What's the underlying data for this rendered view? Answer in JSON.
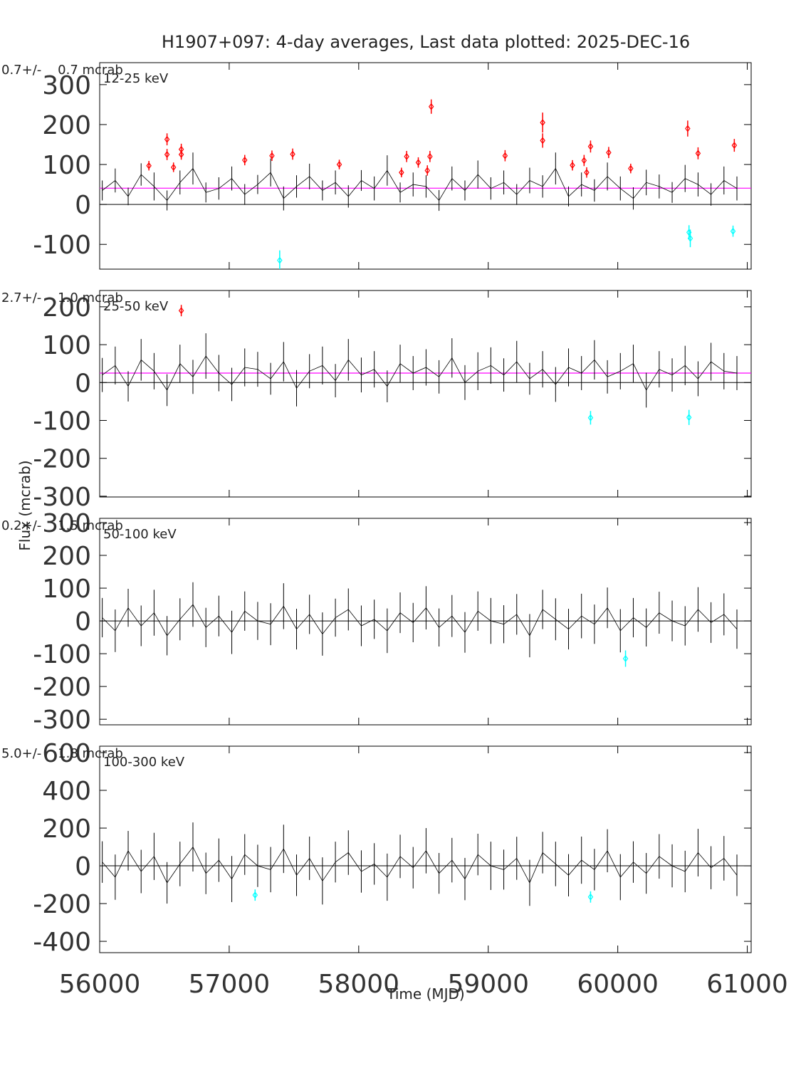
{
  "title": "H1907+097:  4-day averages,  Last data plotted: 2025-DEC-16",
  "y_label": "Flux (mcrab)",
  "x_label": "Time (MJD)",
  "chart_data": [
    {
      "type": "errorbar",
      "stat_label": "0.7+/-    0.7 mcrab",
      "band_label": "12-25 keV",
      "xlim": [
        56000,
        61030
      ],
      "ylim": [
        -162,
        355
      ],
      "xticks": [
        56000,
        57000,
        58000,
        59000,
        60000,
        61000
      ],
      "yticks": [
        -100,
        0,
        100,
        200,
        300
      ],
      "mean_line": 40.7,
      "mean_color": "#ff00ff",
      "series": [
        {
          "color": "#000000",
          "x": [
            56020,
            56120,
            56220,
            56320,
            56420,
            56520,
            56620,
            56720,
            56820,
            56920,
            57020,
            57120,
            57220,
            57320,
            57420,
            57520,
            57620,
            57720,
            57820,
            57920,
            58020,
            58120,
            58220,
            58320,
            58420,
            58520,
            58620,
            58720,
            58820,
            58920,
            59020,
            59120,
            59220,
            59320,
            59420,
            59520,
            59620,
            59720,
            59820,
            59920,
            60020,
            60120,
            60220,
            60320,
            60420,
            60520,
            60620,
            60720,
            60820,
            60920
          ],
          "values": [
            35,
            60,
            20,
            75,
            45,
            10,
            55,
            90,
            30,
            40,
            65,
            25,
            50,
            80,
            15,
            45,
            70,
            35,
            55,
            20,
            60,
            40,
            85,
            30,
            50,
            45,
            10,
            65,
            35,
            75,
            40,
            55,
            25,
            60,
            45,
            90,
            20,
            50,
            35,
            70,
            40,
            15,
            55,
            45,
            30,
            65,
            50,
            25,
            60,
            40
          ],
          "errors": [
            25,
            30,
            22,
            28,
            35,
            25,
            30,
            40,
            25,
            28,
            30,
            26,
            24,
            35,
            30,
            28,
            32,
            25,
            30,
            28,
            26,
            30,
            38,
            25,
            30,
            28,
            26,
            30,
            25,
            35,
            28,
            30,
            26,
            32,
            28,
            40,
            25,
            30,
            28,
            35,
            30,
            28,
            32,
            30,
            26,
            34,
            30,
            28,
            35,
            30
          ]
        },
        {
          "color": "#ff0000",
          "x": [
            56380,
            56520,
            56520,
            56570,
            56630,
            56630,
            57120,
            57330,
            57490,
            57850,
            58330,
            58370,
            58460,
            58530,
            58550,
            58560,
            59130,
            59420,
            59420,
            59650,
            59740,
            59760,
            59790,
            59930,
            60100,
            60540,
            60620,
            60900
          ],
          "values": [
            97,
            163,
            125,
            93,
            138,
            125,
            111,
            122,
            126,
            100,
            80,
            120,
            105,
            85,
            120,
            245,
            122,
            205,
            160,
            98,
            110,
            80,
            145,
            130,
            90,
            190,
            128,
            148
          ],
          "errors": [
            12,
            15,
            14,
            12,
            14,
            13,
            13,
            13,
            14,
            12,
            12,
            14,
            13,
            13,
            14,
            18,
            14,
            25,
            18,
            13,
            14,
            13,
            15,
            14,
            12,
            20,
            15,
            16
          ]
        },
        {
          "color": "#00ffff",
          "x": [
            57390,
            60550,
            60560,
            60890
          ],
          "values": [
            -140,
            -70,
            -85,
            -67
          ],
          "errors": [
            25,
            18,
            22,
            14
          ]
        }
      ]
    },
    {
      "type": "errorbar",
      "stat_label": "2.7+/-    1.0 mcrab",
      "band_label": "25-50 keV",
      "xlim": [
        56000,
        61030
      ],
      "ylim": [
        -302,
        243
      ],
      "xticks": [
        56000,
        57000,
        58000,
        59000,
        60000,
        61000
      ],
      "yticks": [
        -300,
        -200,
        -100,
        0,
        100,
        200
      ],
      "mean_line": 25,
      "mean_color": "#ff00ff",
      "series": [
        {
          "color": "#000000",
          "x": [
            56020,
            56120,
            56220,
            56320,
            56420,
            56520,
            56620,
            56720,
            56820,
            56920,
            57020,
            57120,
            57220,
            57320,
            57420,
            57520,
            57620,
            57720,
            57820,
            57920,
            58020,
            58120,
            58220,
            58320,
            58420,
            58520,
            58620,
            58720,
            58820,
            58920,
            59020,
            59120,
            59220,
            59320,
            59420,
            59520,
            59620,
            59720,
            59820,
            59920,
            60020,
            60120,
            60220,
            60320,
            60420,
            60520,
            60620,
            60720,
            60820,
            60920
          ],
          "values": [
            20,
            45,
            -10,
            60,
            30,
            -20,
            50,
            15,
            70,
            25,
            -5,
            40,
            35,
            10,
            55,
            -15,
            30,
            45,
            5,
            60,
            20,
            35,
            -10,
            50,
            25,
            40,
            15,
            65,
            0,
            30,
            45,
            20,
            55,
            10,
            35,
            -5,
            40,
            25,
            60,
            15,
            30,
            50,
            -20,
            35,
            20,
            45,
            10,
            55,
            30,
            25
          ],
          "errors": [
            45,
            50,
            40,
            55,
            48,
            42,
            50,
            45,
            60,
            48,
            44,
            50,
            46,
            42,
            52,
            48,
            45,
            50,
            44,
            55,
            46,
            48,
            42,
            50,
            45,
            48,
            44,
            52,
            46,
            50,
            48,
            44,
            55,
            42,
            48,
            46,
            50,
            45,
            52,
            44,
            48,
            50,
            46,
            48,
            44,
            52,
            46,
            50,
            48,
            45
          ]
        },
        {
          "color": "#ff0000",
          "x": [
            56630
          ],
          "values": [
            190
          ],
          "errors": [
            15
          ]
        },
        {
          "color": "#00ffff",
          "x": [
            59790,
            60550
          ],
          "values": [
            -93,
            -92
          ],
          "errors": [
            18,
            20
          ]
        }
      ]
    },
    {
      "type": "errorbar",
      "stat_label": "0.2+/-    1.5 mcrab",
      "band_label": "50-100 keV",
      "xlim": [
        56000,
        61030
      ],
      "ylim": [
        -317,
        313
      ],
      "xticks": [
        56000,
        57000,
        58000,
        59000,
        60000,
        61000
      ],
      "yticks": [
        -300,
        -200,
        -100,
        0,
        100,
        200,
        300
      ],
      "series": [
        {
          "color": "#000000",
          "x": [
            56020,
            56120,
            56220,
            56320,
            56420,
            56520,
            56620,
            56720,
            56820,
            56920,
            57020,
            57120,
            57220,
            57320,
            57420,
            57520,
            57620,
            57720,
            57820,
            57920,
            58020,
            58120,
            58220,
            58320,
            58420,
            58520,
            58620,
            58720,
            58820,
            58920,
            59020,
            59120,
            59220,
            59320,
            59420,
            59520,
            59620,
            59720,
            59820,
            59920,
            60020,
            60120,
            60220,
            60320,
            60420,
            60520,
            60620,
            60720,
            60820,
            60920
          ],
          "values": [
            10,
            -30,
            40,
            -15,
            25,
            -45,
            5,
            50,
            -20,
            15,
            -35,
            30,
            0,
            -10,
            45,
            -25,
            20,
            -40,
            10,
            35,
            -15,
            5,
            -30,
            25,
            -5,
            40,
            -20,
            15,
            -35,
            30,
            0,
            -10,
            20,
            -45,
            35,
            5,
            -25,
            15,
            -10,
            40,
            -30,
            10,
            -20,
            25,
            0,
            -15,
            35,
            -5,
            20,
            -25
          ],
          "errors": [
            60,
            65,
            58,
            62,
            70,
            60,
            64,
            68,
            60,
            62,
            66,
            60,
            58,
            64,
            70,
            62,
            60,
            66,
            58,
            64,
            62,
            60,
            68,
            62,
            60,
            66,
            58,
            64,
            62,
            60,
            70,
            58,
            62,
            66,
            60,
            64,
            62,
            68,
            60,
            62,
            66,
            60,
            58,
            64,
            62,
            60,
            68,
            62,
            64,
            60
          ]
        },
        {
          "color": "#00ffff",
          "x": [
            60060
          ],
          "values": [
            -115
          ],
          "errors": [
            25
          ]
        }
      ]
    },
    {
      "type": "errorbar",
      "stat_label": "5.0+/-    1.8 mcrab",
      "band_label": "100-300 keV",
      "xlim": [
        56000,
        61030
      ],
      "ylim": [
        -460,
        634
      ],
      "xticks": [
        56000,
        57000,
        58000,
        59000,
        60000,
        61000
      ],
      "yticks": [
        -400,
        -200,
        0,
        200,
        400,
        600
      ],
      "series": [
        {
          "color": "#000000",
          "x": [
            56020,
            56120,
            56220,
            56320,
            56420,
            56520,
            56620,
            56720,
            56820,
            56920,
            57020,
            57120,
            57220,
            57320,
            57420,
            57520,
            57620,
            57720,
            57820,
            57920,
            58020,
            58120,
            58220,
            58320,
            58420,
            58520,
            58620,
            58720,
            58820,
            58920,
            59020,
            59120,
            59220,
            59320,
            59420,
            59520,
            59620,
            59720,
            59820,
            59920,
            60020,
            60120,
            60220,
            60320,
            60420,
            60520,
            60620,
            60720,
            60820,
            60920
          ],
          "values": [
            20,
            -60,
            80,
            -30,
            50,
            -90,
            10,
            100,
            -40,
            30,
            -70,
            60,
            0,
            -20,
            90,
            -50,
            40,
            -80,
            20,
            70,
            -30,
            10,
            -60,
            50,
            -10,
            80,
            -40,
            30,
            -70,
            60,
            0,
            -20,
            40,
            -90,
            70,
            10,
            -50,
            30,
            -20,
            80,
            -60,
            20,
            -40,
            50,
            0,
            -30,
            70,
            -10,
            40,
            -50
          ],
          "errors": [
            110,
            120,
            105,
            115,
            125,
            110,
            118,
            130,
            110,
            115,
            122,
            108,
            112,
            120,
            128,
            110,
            115,
            125,
            108,
            118,
            112,
            110,
            125,
            115,
            110,
            120,
            108,
            118,
            112,
            110,
            128,
            106,
            114,
            122,
            110,
            118,
            112,
            125,
            110,
            114,
            122,
            110,
            108,
            118,
            114,
            110,
            126,
            114,
            118,
            110
          ]
        },
        {
          "color": "#00ffff",
          "x": [
            57200,
            59790
          ],
          "values": [
            -155,
            -165
          ],
          "errors": [
            30,
            30
          ]
        }
      ]
    }
  ]
}
